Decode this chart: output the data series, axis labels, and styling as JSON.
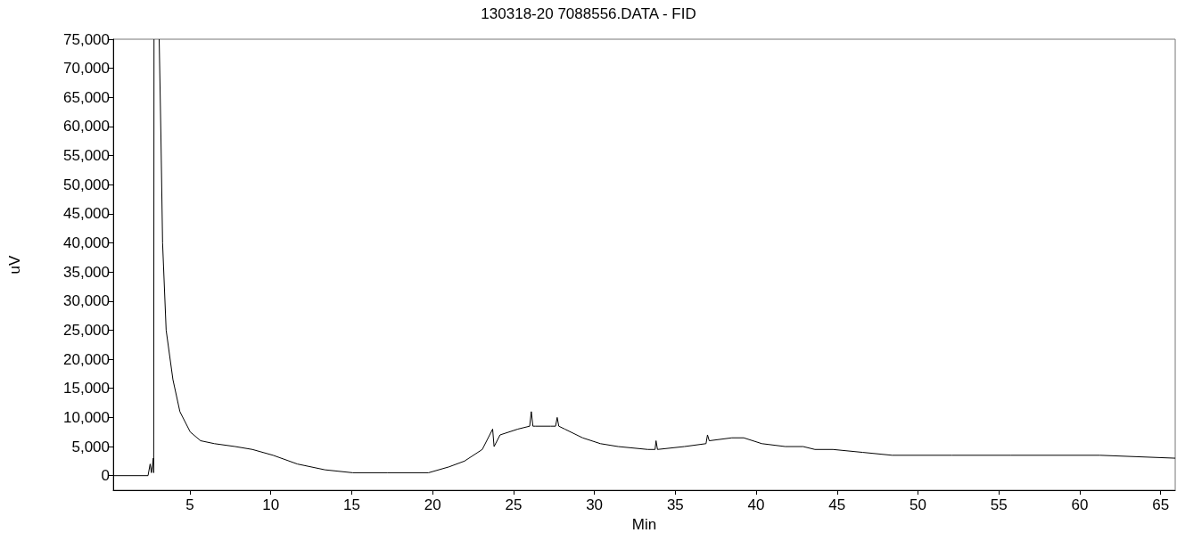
{
  "chart_data": {
    "type": "line",
    "title": "130318-20 7088556.DATA - FID",
    "xlabel": "Min",
    "ylabel": "uV",
    "x": [
      0.26,
      2.41,
      2.54,
      2.62,
      2.74,
      2.76,
      2.78,
      null,
      3.1,
      3.21,
      3.31,
      3.53,
      3.95,
      4.38,
      5.02,
      5.66,
      6.51,
      7.8,
      8.86,
      10.14,
      11.64,
      13.35,
      15.06,
      17.19,
      19.75,
      21.0,
      21.97,
      23.07,
      23.71,
      23.8,
      24.17,
      25.27,
      26.0,
      26.1,
      26.2,
      26.37,
      27.29,
      27.6,
      27.7,
      27.8,
      28.17,
      29.27,
      30.37,
      31.47,
      33.3,
      33.75,
      33.81,
      33.9,
      35.56,
      36.9,
      36.99,
      37.1,
      38.5,
      39.23,
      40.35,
      41.8,
      42.9,
      43.63,
      44.74,
      46.58,
      48.41,
      52.09,
      55.75,
      61.25,
      65.9
    ],
    "series": [
      {
        "color": "#000000",
        "values": [
          0,
          0,
          2000,
          500,
          3000,
          500,
          75000,
          null,
          75000,
          58000,
          40000,
          25000,
          16500,
          11000,
          7500,
          6000,
          5500,
          5000,
          4500,
          3500,
          2000,
          1000,
          500,
          500,
          500,
          1500,
          2500,
          4500,
          8000,
          5000,
          7000,
          8000,
          8500,
          11000,
          8500,
          8500,
          8500,
          8500,
          10000,
          8500,
          8000,
          6500,
          5500,
          5000,
          4500,
          4500,
          6000,
          4500,
          5000,
          5500,
          7000,
          6000,
          6500,
          6500,
          5500,
          5000,
          5000,
          4500,
          4500,
          4000,
          3500,
          3500,
          3500,
          3500,
          3000
        ]
      }
    ],
    "xlim": [
      0.26,
      65.9
    ],
    "xticks": [
      5,
      10,
      15,
      20,
      25,
      30,
      35,
      40,
      45,
      50,
      55,
      60,
      65
    ],
    "ylim": [
      -2500,
      75000
    ],
    "yticks": [
      0,
      {
        "value": 5000,
        "label": "5,000"
      },
      {
        "value": 10000,
        "label": "10,000"
      },
      {
        "value": 15000,
        "label": "15,000"
      },
      {
        "value": 20000,
        "label": "20,000"
      },
      {
        "value": 25000,
        "label": "25,000"
      },
      {
        "value": 30000,
        "label": "30,000"
      },
      {
        "value": 35000,
        "label": "35,000"
      },
      {
        "value": 40000,
        "label": "40,000"
      },
      {
        "value": 45000,
        "label": "45,000"
      },
      {
        "value": 50000,
        "label": "50,000"
      },
      {
        "value": 55000,
        "label": "55,000"
      },
      {
        "value": 60000,
        "label": "60,000"
      },
      {
        "value": 65000,
        "label": "65,000"
      },
      {
        "value": 70000,
        "label": "70,000"
      },
      {
        "value": 75000,
        "label": "75,000"
      }
    ],
    "grid": false,
    "marker": "none",
    "line_style": "solid"
  }
}
